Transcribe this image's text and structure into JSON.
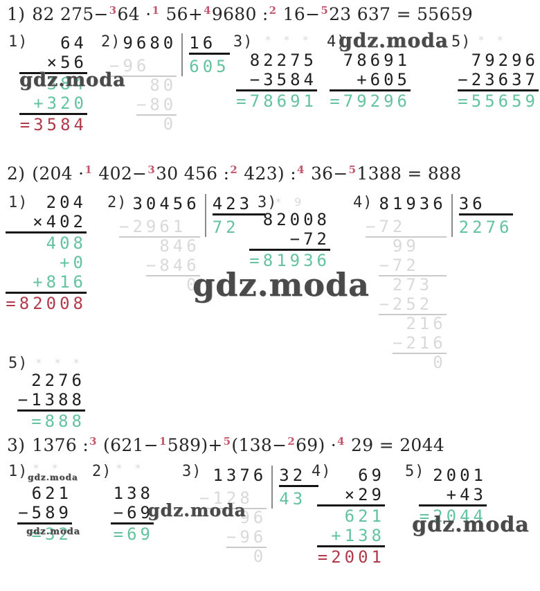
{
  "watermark_text": "gdz.moda",
  "colors": {
    "green": "#63c39e",
    "red": "#b03a4a",
    "faint": "#d9d9d9",
    "pink": "#c4566b",
    "ink": "#1f1f1f"
  },
  "equations": [
    {
      "label": "1)",
      "segments": [
        {
          "t": "82 275−"
        },
        {
          "s": "3"
        },
        {
          "t": "64 ·"
        },
        {
          "s": "1"
        },
        {
          "t": " 56+"
        },
        {
          "s": "4"
        },
        {
          "t": "9680 :"
        },
        {
          "s": "2"
        },
        {
          "t": " 16−"
        },
        {
          "s": "5"
        },
        {
          "t": "23 637 = 55659"
        }
      ]
    },
    {
      "label": "2)",
      "segments": [
        {
          "t": "(204 ·"
        },
        {
          "s": "1"
        },
        {
          "t": " 402−"
        },
        {
          "s": "3"
        },
        {
          "t": "30 456 :"
        },
        {
          "s": "2"
        },
        {
          "t": " 423) :"
        },
        {
          "s": "4"
        },
        {
          "t": " 36−"
        },
        {
          "s": "5"
        },
        {
          "t": "1388 = 888"
        }
      ]
    },
    {
      "label": "3)",
      "segments": [
        {
          "t": "1376 :"
        },
        {
          "s": "3"
        },
        {
          "t": " (621−"
        },
        {
          "s": "1"
        },
        {
          "t": "589)+"
        },
        {
          "s": "5"
        },
        {
          "t": "(138−"
        },
        {
          "s": "2"
        },
        {
          "t": "69) ·"
        },
        {
          "s": "4"
        },
        {
          "t": " 29 = 2044"
        }
      ]
    }
  ],
  "blocks": {
    "s1b1": {
      "label": "1)",
      "lines": [
        {
          "t": "64"
        },
        {
          "t": "×56",
          "u": true
        },
        {
          "t": "384",
          "c": "green"
        },
        {
          "t": "+320",
          "c": "green",
          "u": true
        },
        {
          "t": "=3584",
          "c": "red"
        }
      ]
    },
    "s1b2": {
      "label": "2)",
      "dividend": "9680",
      "divisor": "16",
      "quotient": "605",
      "steps": [
        {
          "t": "−96",
          "pad": 2,
          "u": true
        },
        {
          "t": "80"
        },
        {
          "t": "−80",
          "u": true
        },
        {
          "t": "0"
        }
      ]
    },
    "s1b3": {
      "label": "3)",
      "lines": [
        {
          "t": "82275"
        },
        {
          "t": "−3584",
          "u": true
        },
        {
          "t": "=78691",
          "c": "green"
        }
      ]
    },
    "s1b4": {
      "label": "4)",
      "lines": [
        {
          "t": "78691"
        },
        {
          "t": "+605",
          "u": true
        },
        {
          "t": "=79296",
          "c": "green"
        }
      ]
    },
    "s1b5": {
      "label": "5)",
      "lines": [
        {
          "t": "79296"
        },
        {
          "t": "−23637",
          "u": true
        },
        {
          "t": "=55659",
          "c": "green"
        }
      ]
    },
    "s2b1": {
      "label": "1)",
      "lines": [
        {
          "t": "204"
        },
        {
          "t": "×402",
          "u": true
        },
        {
          "t": "408",
          "c": "green"
        },
        {
          "t": "+0",
          "c": "green"
        },
        {
          "t": "+816",
          "c": "green",
          "u": true
        },
        {
          "t": "=82008",
          "c": "red"
        }
      ]
    },
    "s2b2": {
      "label": "2)",
      "dividend": "30456",
      "divisor": "423",
      "quotient": "72",
      "steps": [
        {
          "t": "−2961",
          "pad": 1,
          "u": true
        },
        {
          "t": "846"
        },
        {
          "t": "−846",
          "u": true
        },
        {
          "t": "0"
        }
      ]
    },
    "s2b3": {
      "label": "3)",
      "lines": [
        {
          "t": "82008"
        },
        {
          "t": "−72",
          "u": true
        },
        {
          "t": "=81936",
          "c": "green"
        }
      ]
    },
    "s2b4": {
      "label": "4)",
      "dividend": "81936",
      "divisor": "36",
      "quotient": "2276",
      "steps": [
        {
          "t": "−72",
          "pad": 3,
          "u": true
        },
        {
          "t": "99",
          "pad": 2
        },
        {
          "t": "−72",
          "pad": 2,
          "u": true
        },
        {
          "t": "273",
          "pad": 1
        },
        {
          "t": "−252",
          "pad": 1,
          "u": true
        },
        {
          "t": "216"
        },
        {
          "t": "−216",
          "u": true
        },
        {
          "t": "0"
        }
      ]
    },
    "s2b5": {
      "label": "5)",
      "lines": [
        {
          "t": "2276"
        },
        {
          "t": "−1388",
          "u": true
        },
        {
          "t": "=888",
          "c": "green"
        }
      ]
    },
    "s3b1": {
      "label": "1)",
      "lines": [
        {
          "t": "621"
        },
        {
          "t": "−589",
          "u": true
        },
        {
          "t": "=32",
          "c": "green"
        }
      ]
    },
    "s3b2": {
      "label": "2)",
      "lines": [
        {
          "t": "138"
        },
        {
          "t": "−69",
          "u": true
        },
        {
          "t": "=69",
          "c": "green"
        }
      ]
    },
    "s3b3": {
      "label": "3)",
      "dividend": "1376",
      "divisor": "32",
      "quotient": "43",
      "steps": [
        {
          "t": "−128",
          "pad": 1,
          "u": true
        },
        {
          "t": "96"
        },
        {
          "t": "−96",
          "u": true
        },
        {
          "t": "0"
        }
      ]
    },
    "s3b4": {
      "label": "4)",
      "lines": [
        {
          "t": "69"
        },
        {
          "t": "×29",
          "u": true
        },
        {
          "t": "621",
          "c": "green"
        },
        {
          "t": "+138",
          "c": "green",
          "u": true
        },
        {
          "t": "=2001",
          "c": "red"
        }
      ]
    },
    "s3b5": {
      "label": "5)",
      "lines": [
        {
          "t": "2001"
        },
        {
          "t": "+43",
          "u": true
        },
        {
          "t": "=2044",
          "c": "green"
        }
      ]
    }
  },
  "stars": {
    "s1b3": "* * *",
    "s1b5": "* *",
    "s2b3": "* 9",
    "s2b5": "* * *",
    "s3b1": "* *",
    "s3b2": "* *"
  }
}
